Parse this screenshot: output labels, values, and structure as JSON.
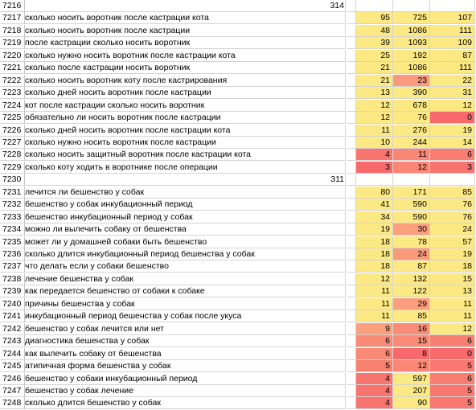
{
  "sheet": {
    "rows": [
      {
        "num": "7216",
        "kw": "",
        "total": "314",
        "v1": "",
        "v2": "",
        "v3": "",
        "c1": "",
        "c2": "",
        "c3": ""
      },
      {
        "num": "7217",
        "kw": "сколько носить воротник после кастрации кота",
        "total": "",
        "v1": "95",
        "v2": "725",
        "v3": "107",
        "c1": "#fde983",
        "c2": "#fde983",
        "c3": "#fde983"
      },
      {
        "num": "7218",
        "kw": "сколько носить воротник после кастрации",
        "total": "",
        "v1": "48",
        "v2": "1086",
        "v3": "111",
        "c1": "#fde983",
        "c2": "#fde983",
        "c3": "#fde983"
      },
      {
        "num": "7219",
        "kw": "после кастрации сколько носить воротник",
        "total": "",
        "v1": "39",
        "v2": "1093",
        "v3": "109",
        "c1": "#fde983",
        "c2": "#fde983",
        "c3": "#fde983"
      },
      {
        "num": "7220",
        "kw": "сколько нужно носить воротник после кастрации кота",
        "total": "",
        "v1": "25",
        "v2": "192",
        "v3": "87",
        "c1": "#fde983",
        "c2": "#fde983",
        "c3": "#fde983"
      },
      {
        "num": "7221",
        "kw": "сколько после кастрации носить воротник",
        "total": "",
        "v1": "21",
        "v2": "1086",
        "v3": "111",
        "c1": "#fde983",
        "c2": "#fde983",
        "c3": "#fde983"
      },
      {
        "num": "7222",
        "kw": "сколько носить воротник коту после кастрирования",
        "total": "",
        "v1": "21",
        "v2": "23",
        "v3": "22",
        "c1": "#fde983",
        "c2": "#fa9a7c",
        "c3": "#fde983"
      },
      {
        "num": "7223",
        "kw": "сколько дней носить воротник после кастрации",
        "total": "",
        "v1": "13",
        "v2": "390",
        "v3": "31",
        "c1": "#fde983",
        "c2": "#fde983",
        "c3": "#fde983"
      },
      {
        "num": "7224",
        "kw": "кот после кастрации сколько носить воротник",
        "total": "",
        "v1": "12",
        "v2": "678",
        "v3": "12",
        "c1": "#fde983",
        "c2": "#fde983",
        "c3": "#fde983"
      },
      {
        "num": "7225",
        "kw": "обязательно ли носить воротник после кастрации",
        "total": "",
        "v1": "12",
        "v2": "76",
        "v3": "0",
        "c1": "#fde983",
        "c2": "#fde983",
        "c3": "#f8696b"
      },
      {
        "num": "7226",
        "kw": "сколько дней носить воротник после кастрации кота",
        "total": "",
        "v1": "11",
        "v2": "276",
        "v3": "19",
        "c1": "#fde983",
        "c2": "#fde983",
        "c3": "#fde983"
      },
      {
        "num": "7227",
        "kw": "сколько нужно носить воротник после кастрации",
        "total": "",
        "v1": "10",
        "v2": "244",
        "v3": "14",
        "c1": "#fde983",
        "c2": "#fde983",
        "c3": "#fde983"
      },
      {
        "num": "7228",
        "kw": "сколько носить защитный воротник после кастрации кота",
        "total": "",
        "v1": "4",
        "v2": "11",
        "v3": "6",
        "c1": "#f8756f",
        "c2": "#fa8775",
        "c3": "#f97e72"
      },
      {
        "num": "7229",
        "kw": "сколько коту ходить в воротнике после операции",
        "total": "",
        "v1": "3",
        "v2": "12",
        "v3": "3",
        "c1": "#f8696b",
        "c2": "#fa8775",
        "c3": "#f8736e"
      },
      {
        "num": "7230",
        "kw": "",
        "total": "311",
        "v1": "",
        "v2": "",
        "v3": "",
        "c1": "",
        "c2": "",
        "c3": ""
      },
      {
        "num": "7231",
        "kw": "лечится ли бешенство у собак",
        "total": "",
        "v1": "80",
        "v2": "171",
        "v3": "85",
        "c1": "#fde983",
        "c2": "#fde983",
        "c3": "#fde983"
      },
      {
        "num": "7232",
        "kw": "бешенство у собак инкубационный период",
        "total": "",
        "v1": "41",
        "v2": "590",
        "v3": "76",
        "c1": "#fde983",
        "c2": "#fde983",
        "c3": "#fde983"
      },
      {
        "num": "7233",
        "kw": "бешенство инкубационный период у собак",
        "total": "",
        "v1": "34",
        "v2": "590",
        "v3": "76",
        "c1": "#fde983",
        "c2": "#fde983",
        "c3": "#fde983"
      },
      {
        "num": "7234",
        "kw": "можно ли вылечить собаку от бешенства",
        "total": "",
        "v1": "19",
        "v2": "30",
        "v3": "24",
        "c1": "#fde983",
        "c2": "#fb9f7d",
        "c3": "#fde983"
      },
      {
        "num": "7235",
        "kw": "может ли у домашней собаки быть бешенство",
        "total": "",
        "v1": "18",
        "v2": "78",
        "v3": "57",
        "c1": "#fde983",
        "c2": "#fde983",
        "c3": "#fde983"
      },
      {
        "num": "7236",
        "kw": "сколько длится инкубационный период бешенства у собак",
        "total": "",
        "v1": "18",
        "v2": "24",
        "v3": "19",
        "c1": "#fde983",
        "c2": "#fa9a7c",
        "c3": "#fde983"
      },
      {
        "num": "7237",
        "kw": "что делать если у собаки бешенство",
        "total": "",
        "v1": "18",
        "v2": "87",
        "v3": "18",
        "c1": "#fde983",
        "c2": "#fde983",
        "c3": "#fde983"
      },
      {
        "num": "7238",
        "kw": "лечение бешенства у собак",
        "total": "",
        "v1": "12",
        "v2": "132",
        "v3": "15",
        "c1": "#fde983",
        "c2": "#fde983",
        "c3": "#fde983"
      },
      {
        "num": "7239",
        "kw": "как передается бешенство от собаки к собаке",
        "total": "",
        "v1": "11",
        "v2": "122",
        "v3": "13",
        "c1": "#fde983",
        "c2": "#fde983",
        "c3": "#fde983"
      },
      {
        "num": "7240",
        "kw": "причины бешенства у собак",
        "total": "",
        "v1": "11",
        "v2": "29",
        "v3": "11",
        "c1": "#fde983",
        "c2": "#fb9e7d",
        "c3": "#fde983"
      },
      {
        "num": "7241",
        "kw": "инкубационный период бешенства у собак после укуса",
        "total": "",
        "v1": "11",
        "v2": "85",
        "v3": "11",
        "c1": "#fde983",
        "c2": "#fde983",
        "c3": "#fde983"
      },
      {
        "num": "7242",
        "kw": "бешенство у собак лечится или нет",
        "total": "",
        "v1": "9",
        "v2": "16",
        "v3": "12",
        "c1": "#fc9f7d",
        "c2": "#fa8d77",
        "c3": "#fde983"
      },
      {
        "num": "7243",
        "kw": "диагностика бешенства у собак",
        "total": "",
        "v1": "6",
        "v2": "15",
        "v3": "6",
        "c1": "#f98a76",
        "c2": "#fa8b77",
        "c3": "#f97e72"
      },
      {
        "num": "7244",
        "kw": "как вылечить собаку от бешенства",
        "total": "",
        "v1": "6",
        "v2": "8",
        "v3": "0",
        "c1": "#f98a76",
        "c2": "#f8696b",
        "c3": "#f8696b"
      },
      {
        "num": "7245",
        "kw": "атипичная форма бешенства у собак",
        "total": "",
        "v1": "5",
        "v2": "12",
        "v3": "5",
        "c1": "#f8806f",
        "c2": "#fa8775",
        "c3": "#f97970"
      },
      {
        "num": "7246",
        "kw": "бешенство у собаки инкубационный период",
        "total": "",
        "v1": "4",
        "v2": "597",
        "v3": "6",
        "c1": "#f8756f",
        "c2": "#fde983",
        "c3": "#f97e72"
      },
      {
        "num": "7247",
        "kw": "бешенство у собак лечение",
        "total": "",
        "v1": "4",
        "v2": "207",
        "v3": "5",
        "c1": "#f8756f",
        "c2": "#fde983",
        "c3": "#f97970"
      },
      {
        "num": "7248",
        "kw": "сколько длится бешенство у собак",
        "total": "",
        "v1": "4",
        "v2": "90",
        "v3": "5",
        "c1": "#f8756f",
        "c2": "#fde983",
        "c3": "#f97970"
      }
    ]
  }
}
